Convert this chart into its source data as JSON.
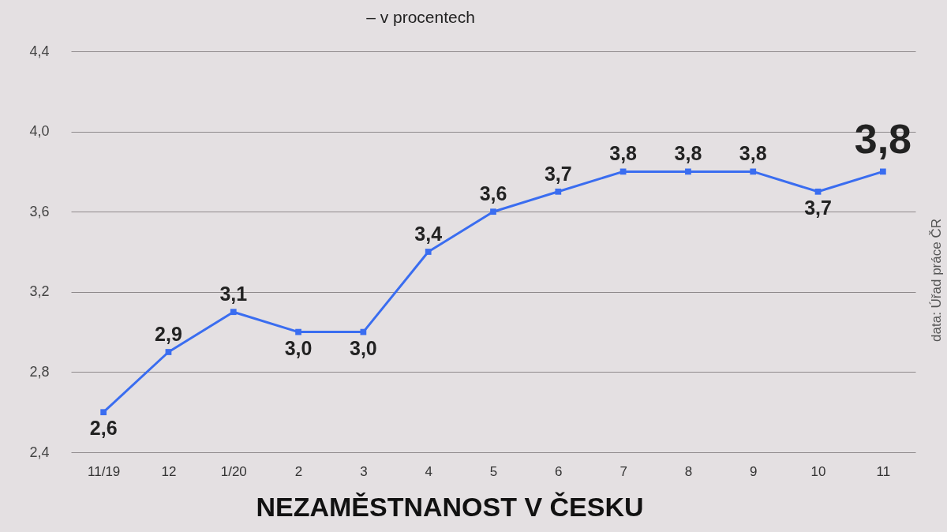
{
  "chart_data": {
    "type": "line",
    "title": "NEZAMĚSTNANOST V ČESKU",
    "subtitle": "– v procentech",
    "annotations": [
      "data: Úřad práce ČR"
    ],
    "categories": [
      "11/19",
      "12",
      "1/20",
      "2",
      "3",
      "4",
      "5",
      "6",
      "7",
      "8",
      "9",
      "10",
      "11"
    ],
    "series": [
      {
        "color": "#3a6df0",
        "values": [
          2.6,
          2.9,
          3.1,
          3.0,
          3.0,
          3.4,
          3.6,
          3.7,
          3.8,
          3.8,
          3.8,
          3.7,
          3.8
        ],
        "value_labels": [
          "2,6",
          "2,9",
          "3,1",
          "3,0",
          "3,0",
          "3,4",
          "3,6",
          "3,7",
          "3,8",
          "3,8",
          "3,8",
          "3,7",
          "3,8"
        ]
      }
    ],
    "ylim": [
      2.4,
      4.4
    ],
    "yticks": [
      {
        "value": 2.4,
        "label": "2,4"
      },
      {
        "value": 2.8,
        "label": "2,8"
      },
      {
        "value": 3.2,
        "label": "3,2"
      },
      {
        "value": 3.6,
        "label": "3,6"
      },
      {
        "value": 4.0,
        "label": "4,0"
      },
      {
        "value": 4.4,
        "label": "4,4"
      }
    ],
    "grid": "y",
    "marker": "square",
    "line_style": "solid"
  }
}
